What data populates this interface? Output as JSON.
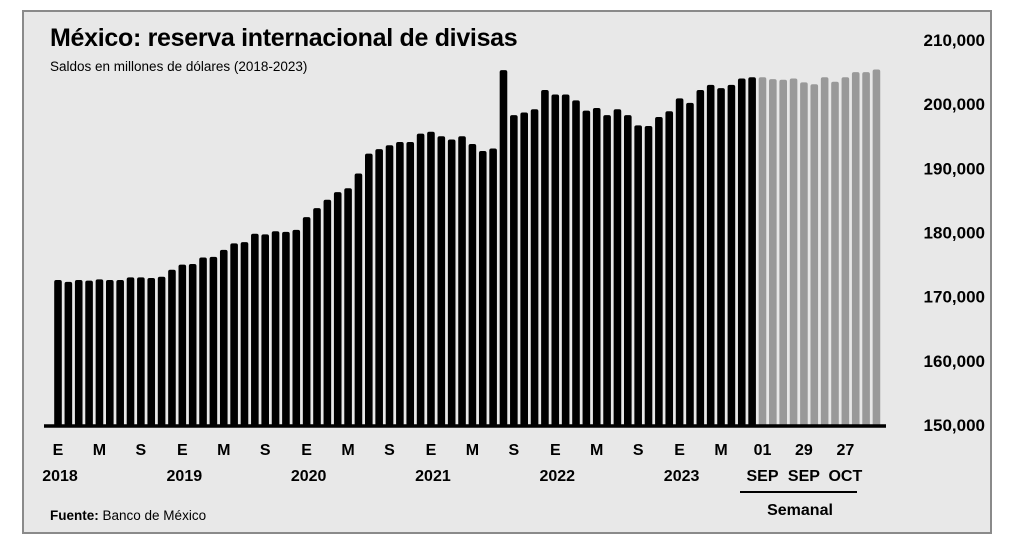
{
  "chart_data": {
    "type": "bar",
    "title": "México: reserva internacional de divisas",
    "subtitle": "Saldos en millones de dólares (2018-2023)",
    "ylim": [
      150000,
      210000
    ],
    "y_ticks": [
      "210,000",
      "200,000",
      "190,000",
      "180,000",
      "170,000",
      "160,000",
      "150,000"
    ],
    "y_tick_values": [
      210000,
      200000,
      190000,
      180000,
      170000,
      160000,
      150000
    ],
    "y_axis_position": "right",
    "grid": false,
    "series": [
      {
        "period": "monthly",
        "range": "Jan 2018 – Aug 2023",
        "color": "#000000",
        "values": [
          172600,
          172300,
          172600,
          172500,
          172700,
          172600,
          172600,
          173000,
          173000,
          172900,
          173100,
          174200,
          175000,
          175100,
          176100,
          176200,
          177300,
          178300,
          178500,
          179800,
          179700,
          180200,
          180100,
          180400,
          182400,
          183800,
          185100,
          186300,
          186900,
          189200,
          192300,
          193000,
          193600,
          194100,
          194100,
          195400,
          195700,
          195000,
          194500,
          195000,
          193800,
          192700,
          193100,
          205300,
          198300,
          198700,
          199200,
          202200,
          201500,
          201500,
          200600,
          199000,
          199400,
          198300,
          199200,
          198300,
          196700,
          196600,
          198000,
          198900,
          200900,
          200200,
          202200,
          203000,
          202500,
          203000,
          204000,
          204200
        ]
      },
      {
        "period": "weekly",
        "range": "Sep 01 2023 onward",
        "color": "#999999",
        "values": [
          204200,
          203900,
          203800,
          204000,
          203400,
          203100,
          204200,
          203500,
          204200,
          205000,
          205000,
          205400
        ]
      }
    ],
    "x_month_labels": [
      "E",
      "M",
      "S",
      "E",
      "M",
      "S",
      "E",
      "M",
      "S",
      "E",
      "M",
      "S",
      "E",
      "M",
      "S",
      "E",
      "M"
    ],
    "x_year_labels": [
      "2018",
      "2019",
      "2020",
      "2021",
      "2022",
      "2023"
    ],
    "x_week_labels": [
      {
        "day": "01",
        "month": "SEP"
      },
      {
        "day": "29",
        "month": "SEP"
      },
      {
        "day": "27",
        "month": "OCT"
      }
    ],
    "weekly_group_label": "Semanal"
  },
  "source": {
    "label": "Fuente:",
    "text": "Banco de México"
  }
}
